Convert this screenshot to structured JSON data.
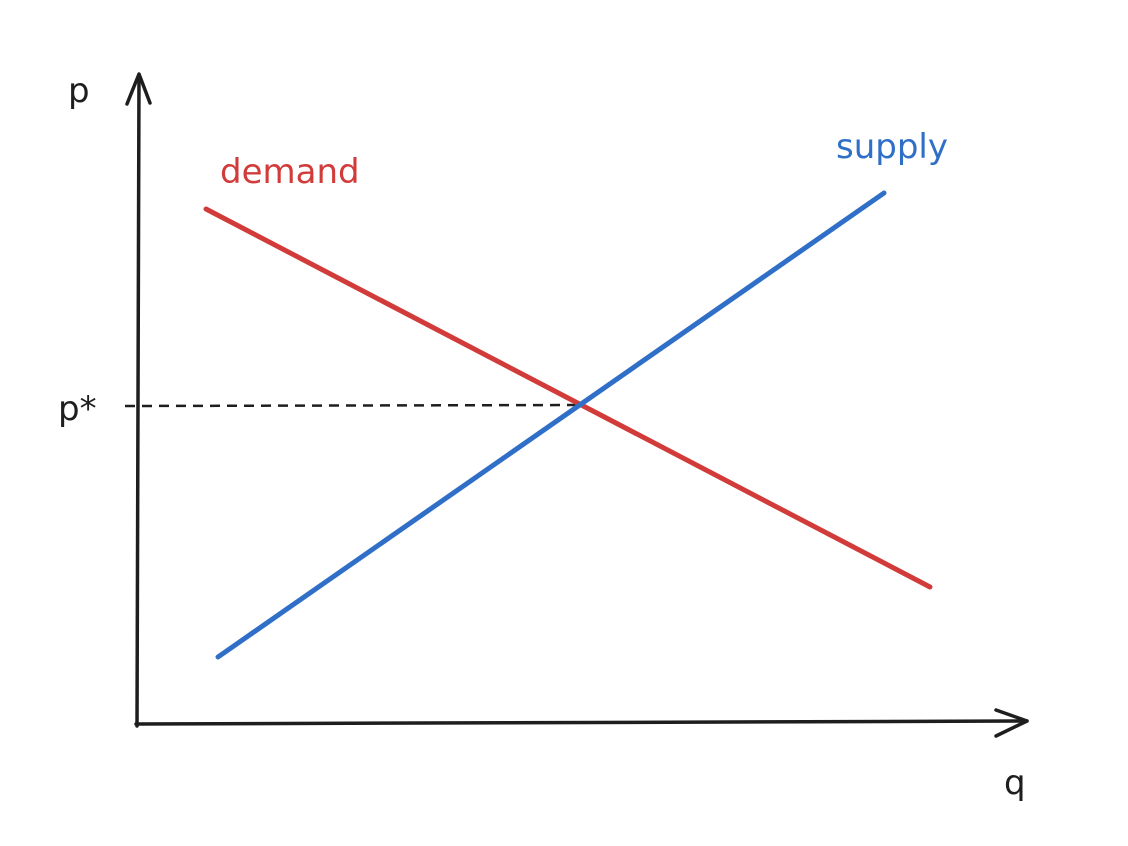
{
  "axes": {
    "y_label": "p",
    "x_label": "q"
  },
  "lines": {
    "demand": {
      "label": "demand",
      "color": "#d13c3a"
    },
    "supply": {
      "label": "supply",
      "color": "#2f6fc8"
    }
  },
  "equilibrium": {
    "price_label": "p*"
  },
  "colors": {
    "axis": "#1e1e1e",
    "guide": "#1e1e1e"
  }
}
